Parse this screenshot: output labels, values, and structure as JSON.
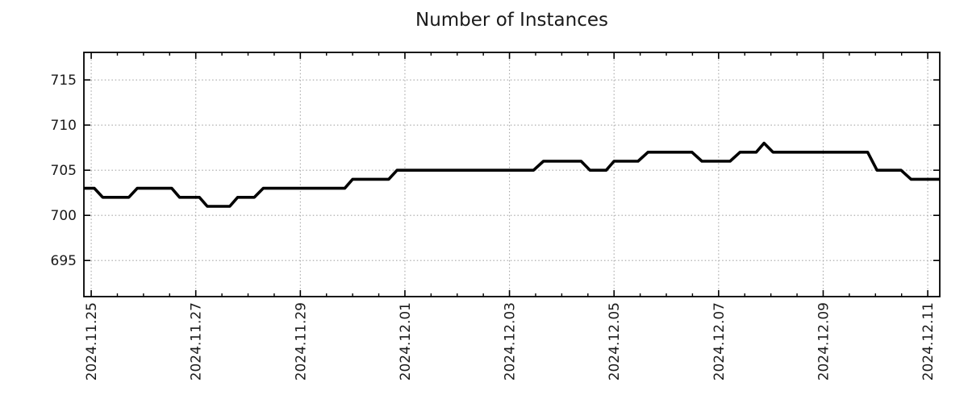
{
  "chart_data": {
    "type": "line",
    "title": "Number of Instances",
    "grid": true,
    "legend": null,
    "x_axis": {
      "kind": "date",
      "tick_labels": [
        "2024.11.25",
        "2024.11.27",
        "2024.11.29",
        "2024.12.01",
        "2024.12.03",
        "2024.12.05",
        "2024.12.07",
        "2024.12.09",
        "2024.12.11"
      ],
      "tick_days": [
        0,
        2,
        4,
        6,
        8,
        10,
        12,
        14,
        16
      ],
      "minor_tick_step_days": 0.5,
      "range_days": [
        -0.14,
        16.23
      ]
    },
    "y_axis": {
      "tick_labels": [
        "695",
        "700",
        "705",
        "710",
        "715"
      ],
      "ticks": [
        695,
        700,
        705,
        710,
        715
      ],
      "range": [
        691,
        718.05
      ]
    },
    "series": [
      {
        "name": "Number of Instances",
        "color": "#000000",
        "points_day_value": [
          [
            -0.14,
            703
          ],
          [
            0.06,
            703
          ],
          [
            0.22,
            702
          ],
          [
            0.72,
            702
          ],
          [
            0.88,
            703
          ],
          [
            1.54,
            703
          ],
          [
            1.69,
            702
          ],
          [
            2.07,
            702
          ],
          [
            2.22,
            701
          ],
          [
            2.65,
            701
          ],
          [
            2.8,
            702
          ],
          [
            3.12,
            702
          ],
          [
            3.29,
            703
          ],
          [
            4.85,
            703
          ],
          [
            5.0,
            704
          ],
          [
            5.69,
            704
          ],
          [
            5.85,
            705
          ],
          [
            8.46,
            705
          ],
          [
            8.65,
            706
          ],
          [
            9.37,
            706
          ],
          [
            9.54,
            705
          ],
          [
            9.85,
            705
          ],
          [
            10.0,
            706
          ],
          [
            10.46,
            706
          ],
          [
            10.65,
            707
          ],
          [
            11.49,
            707
          ],
          [
            11.68,
            706
          ],
          [
            12.22,
            706
          ],
          [
            12.41,
            707
          ],
          [
            12.72,
            707
          ],
          [
            12.87,
            708
          ],
          [
            13.04,
            707
          ],
          [
            14.85,
            707
          ],
          [
            15.03,
            705
          ],
          [
            15.49,
            705
          ],
          [
            15.68,
            704
          ],
          [
            16.23,
            704
          ]
        ]
      }
    ],
    "colors": {
      "line": "#000000",
      "grid": "#a6a6a6",
      "axis": "#000000",
      "text": "#1a1a1a",
      "background": "#ffffff"
    }
  }
}
